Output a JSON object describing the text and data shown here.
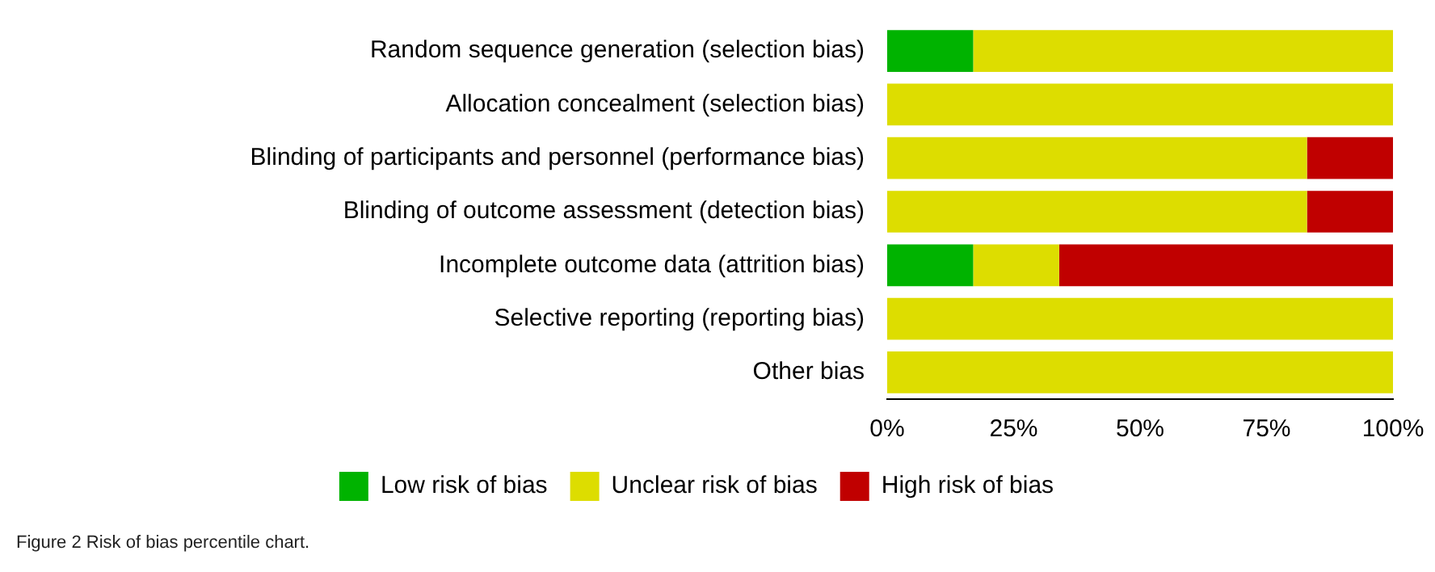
{
  "chart_data": {
    "type": "bar",
    "orientation": "horizontal",
    "stacked": true,
    "categories": [
      "Random sequence generation (selection bias)",
      "Allocation concealment (selection bias)",
      "Blinding of participants and personnel (performance bias)",
      "Blinding of outcome assessment (detection bias)",
      "Incomplete outcome data (attrition bias)",
      "Selective reporting (reporting bias)",
      "Other bias"
    ],
    "series": [
      {
        "name": "Low risk of bias",
        "color": "#00b300",
        "values": [
          17,
          0,
          0,
          0,
          17,
          0,
          0
        ]
      },
      {
        "name": "Unclear risk of bias",
        "color": "#dddd00",
        "values": [
          83,
          100,
          83,
          83,
          17,
          100,
          100
        ]
      },
      {
        "name": "High risk of bias",
        "color": "#c00000",
        "values": [
          0,
          0,
          17,
          17,
          66,
          0,
          0
        ]
      }
    ],
    "xlim": [
      0,
      100
    ],
    "xticks": [
      {
        "value": 0,
        "label": "0%"
      },
      {
        "value": 25,
        "label": "25%"
      },
      {
        "value": 50,
        "label": "50%"
      },
      {
        "value": 75,
        "label": "75%"
      },
      {
        "value": 100,
        "label": "100%"
      }
    ],
    "grid": false,
    "legend": "bottom",
    "annotations": [
      "Figure 2 Risk of bias percentile chart."
    ]
  }
}
